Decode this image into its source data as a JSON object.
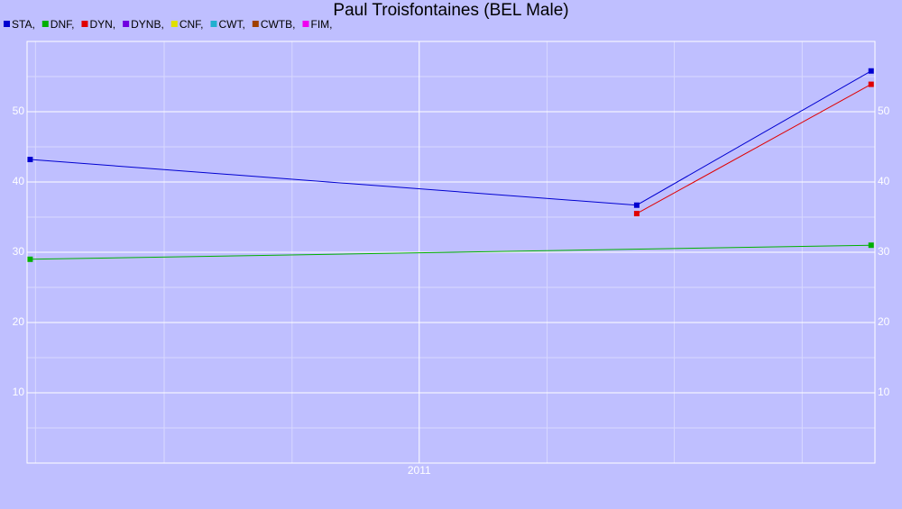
{
  "chart_data": {
    "type": "line",
    "title": "Paul Troisfontaines (BEL Male)",
    "xlim": [
      2010.488,
      2011.595
    ],
    "xticks": [
      {
        "value": 2011,
        "label": "2011"
      }
    ],
    "x_minor_ticks": [
      2010.499,
      2010.667,
      2010.834,
      2011.167,
      2011.333,
      2011.5
    ],
    "ylim": [
      0,
      60
    ],
    "yticks": [
      10,
      20,
      30,
      40,
      50
    ],
    "y_minor_ticks": [
      5,
      15,
      25,
      35,
      45,
      55
    ],
    "grid": true,
    "right_axis_labels": true,
    "legend": "top-left",
    "series": [
      {
        "name": "STA,",
        "color": "#0000d0",
        "x": [
          2010.492,
          2011.284,
          2011.59
        ],
        "values": [
          43.2,
          36.7,
          55.8
        ]
      },
      {
        "name": "DNF,",
        "color": "#00b000",
        "x": [
          2010.492,
          2011.59
        ],
        "values": [
          29,
          31
        ]
      },
      {
        "name": "DYN,",
        "color": "#e00000",
        "x": [
          2011.284,
          2011.59
        ],
        "values": [
          35.5,
          53.9
        ]
      },
      {
        "name": "DYNB,",
        "color": "#7000e0",
        "x": [],
        "values": []
      },
      {
        "name": "CNF,",
        "color": "#e0e000",
        "x": [],
        "values": []
      },
      {
        "name": "CWT,",
        "color": "#20b0d0",
        "x": [],
        "values": []
      },
      {
        "name": "CWTB,",
        "color": "#a04000",
        "x": [],
        "values": []
      },
      {
        "name": "FIM,",
        "color": "#f000f0",
        "x": [],
        "values": []
      }
    ]
  }
}
